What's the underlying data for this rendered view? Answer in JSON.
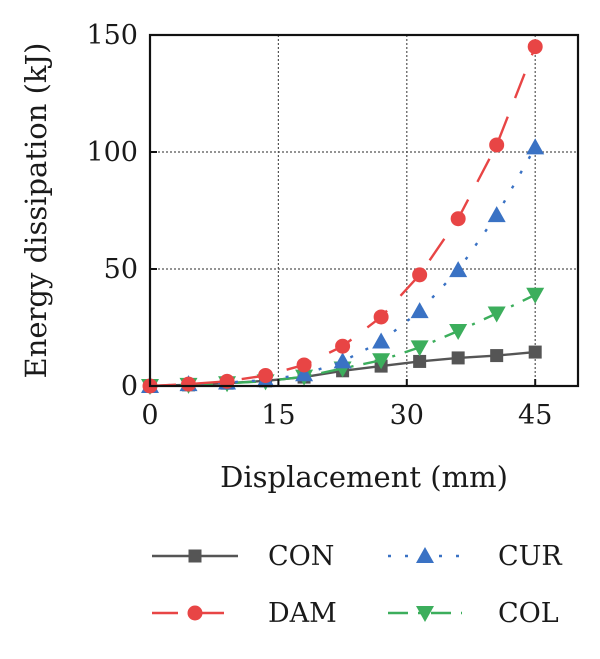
{
  "chart_data": {
    "type": "line",
    "title": "",
    "xlabel": "Displacement (mm)",
    "ylabel": "Energy dissipation (kJ)",
    "xlim": [
      0,
      50
    ],
    "ylim": [
      0,
      150
    ],
    "xticks": [
      0,
      15,
      30,
      45
    ],
    "yticks": [
      0,
      50,
      100,
      150
    ],
    "grid": true,
    "legend_position": "bottom",
    "x": [
      0,
      4.5,
      9,
      13.5,
      18,
      22.5,
      27,
      31.5,
      36,
      40.5,
      45
    ],
    "series": [
      {
        "name": "CON",
        "color": "#555555",
        "marker": "square",
        "line": "solid",
        "values": [
          0,
          0.5,
          1.2,
          2.2,
          3.8,
          6.5,
          8.5,
          10.5,
          12,
          13,
          14.5
        ]
      },
      {
        "name": "CUR",
        "color": "#3a72c4",
        "marker": "triangle-up",
        "line": "dotted",
        "values": [
          0,
          0.8,
          1.5,
          2.5,
          5,
          10.5,
          19,
          32,
          49.5,
          73,
          102
        ]
      },
      {
        "name": "DAM",
        "color": "#e84545",
        "marker": "circle",
        "line": "dashed",
        "values": [
          0,
          0.8,
          2,
          4.5,
          9,
          17,
          29.5,
          47.5,
          71.5,
          103,
          145
        ]
      },
      {
        "name": "COL",
        "color": "#3cae5c",
        "marker": "triangle-down",
        "line": "dashdot",
        "values": [
          0,
          0.5,
          1.2,
          2,
          4,
          7.5,
          11,
          16.5,
          23.5,
          31,
          39
        ]
      }
    ]
  }
}
